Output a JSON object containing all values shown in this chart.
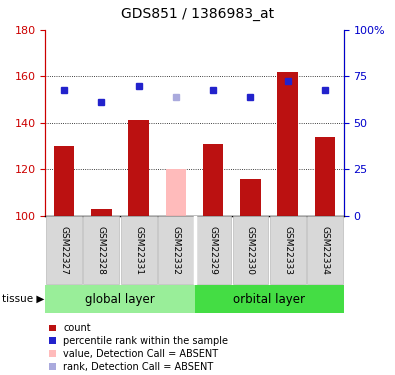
{
  "title": "GDS851 / 1386983_at",
  "samples": [
    "GSM22327",
    "GSM22328",
    "GSM22331",
    "GSM22332",
    "GSM22329",
    "GSM22330",
    "GSM22333",
    "GSM22334"
  ],
  "bar_values": [
    130,
    103,
    141,
    120,
    131,
    116,
    162,
    134
  ],
  "bar_colors": [
    "#bb1111",
    "#bb1111",
    "#bb1111",
    "#ffbbbb",
    "#bb1111",
    "#bb1111",
    "#bb1111",
    "#bb1111"
  ],
  "rank_values": [
    154,
    149,
    156,
    151,
    154,
    151,
    158,
    154
  ],
  "rank_colors": [
    "#2222cc",
    "#2222cc",
    "#2222cc",
    "#aaaadd",
    "#2222cc",
    "#2222cc",
    "#2222cc",
    "#2222cc"
  ],
  "groups": [
    {
      "label": "global layer",
      "start": 0,
      "end": 4,
      "color": "#99ee99"
    },
    {
      "label": "orbital layer",
      "start": 4,
      "end": 8,
      "color": "#44dd44"
    }
  ],
  "tissue_label": "tissue",
  "ylim_left": [
    100,
    180
  ],
  "ylim_right": [
    0,
    100
  ],
  "yticks_left": [
    100,
    120,
    140,
    160,
    180
  ],
  "ytick_labels_right": [
    "0",
    "25",
    "50",
    "75",
    "100%"
  ],
  "left_axis_color": "#cc0000",
  "right_axis_color": "#0000cc",
  "bar_width": 0.55,
  "legend_items": [
    {
      "color": "#bb1111",
      "label": "count"
    },
    {
      "color": "#2222cc",
      "label": "percentile rank within the sample"
    },
    {
      "color": "#ffbbbb",
      "label": "value, Detection Call = ABSENT"
    },
    {
      "color": "#aaaadd",
      "label": "rank, Detection Call = ABSENT"
    }
  ]
}
